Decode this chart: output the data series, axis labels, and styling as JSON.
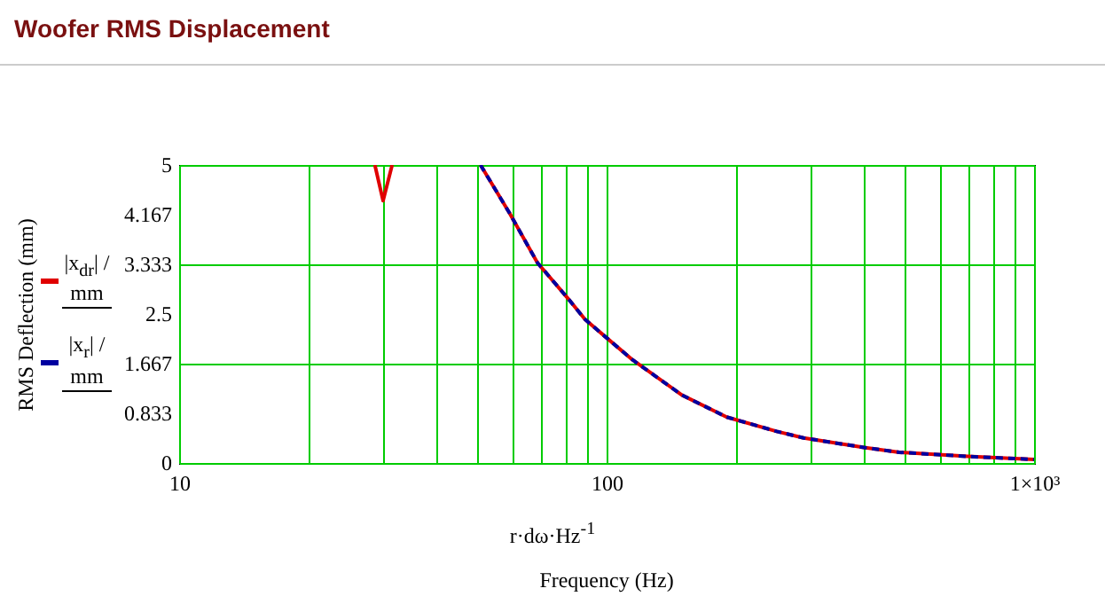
{
  "chart_data": {
    "type": "line",
    "title": "Woofer RMS Displacement",
    "xlabel": "Frequency (Hz)",
    "ylabel": "RMS Deflection (mm)",
    "annotations": [
      "r·dω·Hz$^{-1}$"
    ],
    "series": [
      {
        "name": "|x$_{dr}$| / mm",
        "color": "#e00000",
        "line_style": "solid",
        "x": [
          28.7,
          30,
          31.5,
          40,
          50.7,
          59.2,
          68.9,
          81,
          89,
          100,
          115,
          150,
          191,
          250,
          289,
          400,
          484,
          700,
          1000
        ],
        "values": [
          5,
          4.4,
          5,
          null,
          5,
          4.2,
          3.36,
          2.77,
          2.41,
          2.1,
          1.73,
          1.14,
          0.77,
          0.53,
          0.42,
          0.26,
          0.18,
          0.11,
          0.06
        ]
      },
      {
        "name": "|x$_{r}$| / mm",
        "color": "#0000a0",
        "line_style": "dashed",
        "x": [
          50.7,
          59.2,
          68.9,
          81,
          89,
          100,
          115,
          150,
          191,
          250,
          289,
          400,
          484,
          700,
          1000
        ],
        "values": [
          5,
          4.2,
          3.36,
          2.77,
          2.41,
          2.1,
          1.73,
          1.14,
          0.77,
          0.53,
          0.42,
          0.26,
          0.18,
          0.11,
          0.06
        ]
      }
    ],
    "log": "x",
    "xlim": [
      10,
      1000
    ],
    "ylim": [
      0,
      5
    ],
    "xticks": [
      10,
      {
        "value": 20,
        "label": null
      },
      {
        "value": 30,
        "label": null
      },
      {
        "value": 40,
        "label": null
      },
      {
        "value": 50,
        "label": null
      },
      {
        "value": 60,
        "label": null
      },
      {
        "value": 70,
        "label": null
      },
      {
        "value": 80,
        "label": null
      },
      {
        "value": 90,
        "label": null
      },
      100,
      {
        "value": 200,
        "label": null
      },
      {
        "value": 300,
        "label": null
      },
      {
        "value": 400,
        "label": null
      },
      {
        "value": 500,
        "label": null
      },
      {
        "value": 600,
        "label": null
      },
      {
        "value": 700,
        "label": null
      },
      {
        "value": 800,
        "label": null
      },
      {
        "value": 900,
        "label": null
      },
      {
        "value": 1000,
        "label": "1×10³"
      }
    ],
    "yticks": [
      0,
      0.833,
      1.667,
      2.5,
      3.333,
      4.167,
      5
    ],
    "grid": true,
    "legend": "left",
    "marker": "none"
  }
}
